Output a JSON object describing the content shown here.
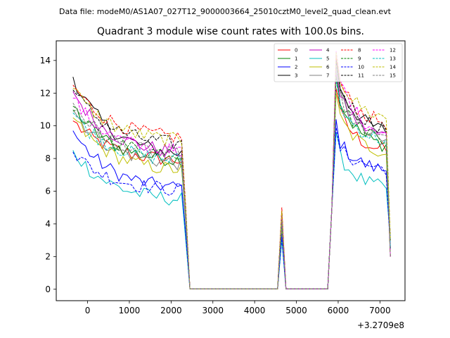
{
  "page": {
    "suptitle": "Data file: modeM0/AS1A07_027T12_9000003664_25010cztM0_level2_quad_clean.evt"
  },
  "chart_data": {
    "type": "line",
    "title": "Quadrant 3 module wise count rates with 100.0s bins.",
    "xlabel": "",
    "ylabel": "",
    "x_offset_label": "+3.2709e8",
    "xlim": [
      -750,
      7600
    ],
    "ylim": [
      -0.7,
      15.2
    ],
    "xticks": [
      0,
      1000,
      2000,
      3000,
      4000,
      5000,
      6000,
      7000
    ],
    "yticks": [
      0,
      2,
      4,
      6,
      8,
      10,
      12,
      14
    ],
    "grid": false,
    "legend_position": "top-right",
    "legend_columns": 4,
    "series": [
      {
        "name": "0",
        "color": "#ff0000",
        "dash": "solid",
        "start": 10.3,
        "end1": 7.9,
        "peak": 3.6,
        "start2": 11.3,
        "end2": 8.5
      },
      {
        "name": "1",
        "color": "#008000",
        "dash": "solid",
        "start": 11.2,
        "end1": 7.9,
        "peak": 3.9,
        "start2": 12.2,
        "end2": 8.8
      },
      {
        "name": "2",
        "color": "#0000ff",
        "dash": "solid",
        "start": 9.7,
        "end1": 6.2,
        "peak": 3.4,
        "start2": 9.4,
        "end2": 7.3
      },
      {
        "name": "3",
        "color": "#000000",
        "dash": "solid",
        "start": 13.0,
        "end1": 8.3,
        "peak": 4.7,
        "start2": 13.1,
        "end2": 9.7
      },
      {
        "name": "4",
        "color": "#bf00bf",
        "dash": "solid",
        "start": 12.1,
        "end1": 8.4,
        "peak": 4.3,
        "start2": 12.3,
        "end2": 9.4
      },
      {
        "name": "5",
        "color": "#00bfbf",
        "dash": "solid",
        "start": 8.5,
        "end1": 5.5,
        "peak": 3.0,
        "start2": 8.6,
        "end2": 6.2
      },
      {
        "name": "6",
        "color": "#bfbf00",
        "dash": "solid",
        "start": 10.5,
        "end1": 7.3,
        "peak": 3.8,
        "start2": 11.0,
        "end2": 8.4
      },
      {
        "name": "7",
        "color": "#808080",
        "dash": "solid",
        "start": 11.0,
        "end1": 7.7,
        "peak": 4.0,
        "start2": 12.6,
        "end2": 9.0
      },
      {
        "name": "8",
        "color": "#ff0000",
        "dash": "dashed",
        "start": 12.5,
        "end1": 9.3,
        "peak": 5.0,
        "start2": 13.2,
        "end2": 10.2
      },
      {
        "name": "9",
        "color": "#008000",
        "dash": "dashed",
        "start": 10.9,
        "end1": 8.3,
        "peak": 4.0,
        "start2": 12.0,
        "end2": 9.3
      },
      {
        "name": "10",
        "color": "#0000ff",
        "dash": "dashed",
        "start": 8.4,
        "end1": 6.1,
        "peak": 3.2,
        "start2": 8.9,
        "end2": 7.4
      },
      {
        "name": "11",
        "color": "#000000",
        "dash": "dashed",
        "start": 12.2,
        "end1": 8.9,
        "peak": 4.6,
        "start2": 13.0,
        "end2": 9.9
      },
      {
        "name": "12",
        "color": "#ff00ff",
        "dash": "dashed",
        "start": 11.7,
        "end1": 8.4,
        "peak": 4.5,
        "start2": 13.6,
        "end2": 9.6
      },
      {
        "name": "13",
        "color": "#00bfbf",
        "dash": "dashed",
        "start": 10.8,
        "end1": 7.9,
        "peak": 4.1,
        "start2": 11.8,
        "end2": 9.1
      },
      {
        "name": "14",
        "color": "#bfbf00",
        "dash": "dashed",
        "start": 12.3,
        "end1": 9.1,
        "peak": 4.8,
        "start2": 13.5,
        "end2": 10.5
      },
      {
        "name": "15",
        "color": "#808080",
        "dash": "dashed",
        "start": 11.4,
        "end1": 8.2,
        "peak": 4.2,
        "start2": 12.4,
        "end2": 9.2
      }
    ]
  }
}
